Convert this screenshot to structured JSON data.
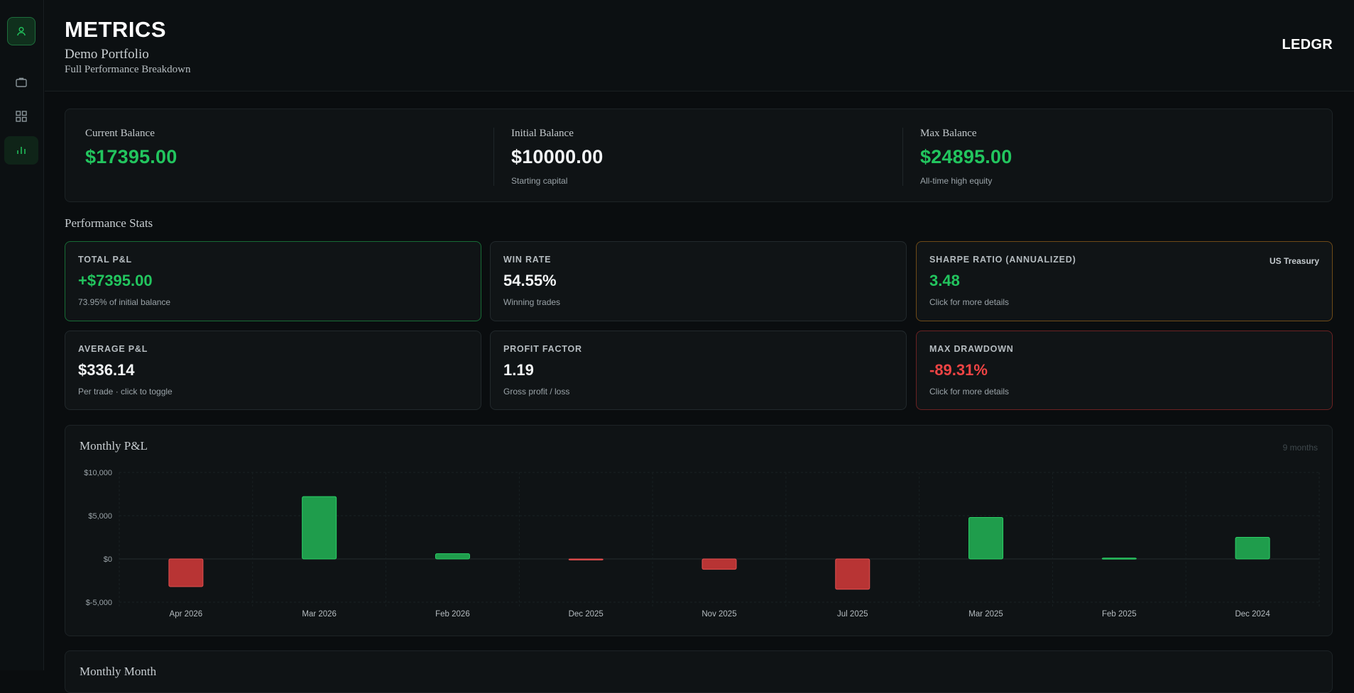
{
  "header": {
    "title": "METRICS",
    "portfolio": "Demo Portfolio",
    "subtitle": "Full Performance Breakdown",
    "brand": "LEDGR"
  },
  "balances": {
    "current": {
      "label": "Current Balance",
      "value": "$17395.00",
      "hint": ""
    },
    "initial": {
      "label": "Initial Balance",
      "value": "$10000.00",
      "hint": "Starting capital"
    },
    "max": {
      "label": "Max Balance",
      "value": "$24895.00",
      "hint": "All-time high equity"
    }
  },
  "stats_section": {
    "title": "Performance Stats"
  },
  "stats": {
    "total_pnl": {
      "label": "TOTAL P&L",
      "value": "+$7395.00",
      "hint": "73.95% of initial balance"
    },
    "win_rate": {
      "label": "WIN RATE",
      "value": "54.55%",
      "hint": "Winning trades"
    },
    "sharpe": {
      "label": "SHARPE RATIO (ANNUALIZED)",
      "value": "3.48",
      "hint": "Click for more details",
      "tag": "US Treasury"
    },
    "avg_pnl": {
      "label": "AVERAGE P&L",
      "value": "$336.14",
      "hint": "Per trade · click to toggle"
    },
    "profit_factor": {
      "label": "PROFIT FACTOR",
      "value": "1.19",
      "hint": "Gross profit / loss"
    },
    "max_drawdown": {
      "label": "MAX DRAWDOWN",
      "value": "-89.31%",
      "hint": "Click for more details"
    }
  },
  "monthly_chart": {
    "title": "Monthly P&L",
    "count": "9 months"
  },
  "next_section": {
    "title": "Monthly Month"
  },
  "colors": {
    "positive": "#22c55e",
    "negative": "#ef4444",
    "bar_positive": "#1f9d4c",
    "bar_negative": "#b83434"
  },
  "icons": [
    "user-icon",
    "briefcase-icon",
    "grid-icon",
    "bar-chart-icon"
  ],
  "chart_data": {
    "type": "bar",
    "title": "Monthly P&L",
    "categories": [
      "Apr 2026",
      "Mar 2026",
      "Feb 2026",
      "Dec 2025",
      "Nov 2025",
      "Jul 2025",
      "Mar 2025",
      "Feb 2025",
      "Dec 2024"
    ],
    "values": [
      -3200,
      7200,
      600,
      -100,
      -1200,
      -3500,
      4800,
      100,
      2500
    ],
    "ylim": [
      -5000,
      10000
    ],
    "yticks": [
      10000,
      5000,
      0,
      -5000
    ],
    "ytick_labels": [
      "$10,000",
      "$5,000",
      "$0",
      "$-5,000"
    ],
    "xlabel": "",
    "ylabel": "",
    "grid": true
  }
}
